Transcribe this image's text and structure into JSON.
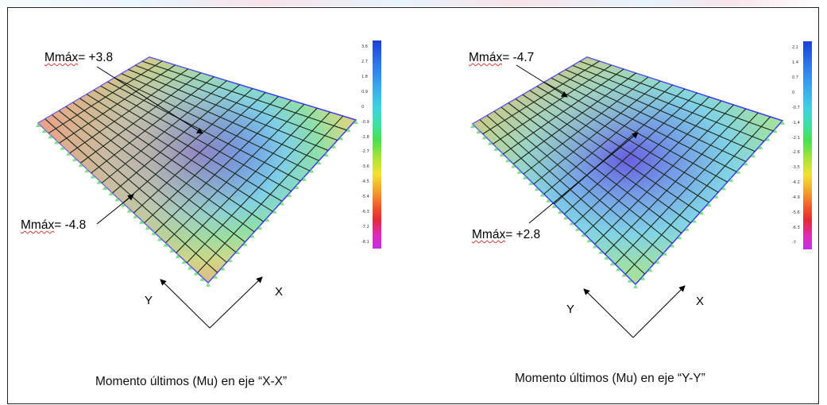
{
  "panels": [
    {
      "label_top": {
        "prefix": "Mmáx",
        "value": "= +3.8"
      },
      "label_bottom": {
        "prefix": "Mmáx",
        "value": "= -4.8"
      },
      "axis_y": "Y",
      "axis_x": "X",
      "caption": "Momento últimos (Mu) en eje “X-X”",
      "colorbar_ticks": [
        "3.6",
        "2.7",
        "1.8",
        "0.9",
        "0",
        "-0.9",
        "-1.8",
        "-2.7",
        "-3.6",
        "-4.5",
        "-5.4",
        "-6.3",
        "-7.2",
        "-8.1"
      ]
    },
    {
      "label_top": {
        "prefix": "Mmáx",
        "value": "= -4.7"
      },
      "label_bottom": {
        "prefix": "Mmáx",
        "value": "= +2.8"
      },
      "axis_y": "Y",
      "axis_x": "X",
      "caption": "Momento últimos (Mu) en eje “Y-Y”",
      "colorbar_ticks": [
        "2.1",
        "1.4",
        "0.7",
        "0",
        "-0.7",
        "-1.4",
        "-2.1",
        "-2.8",
        "-3.5",
        "-4.2",
        "-4.9",
        "-5.6",
        "-6.3",
        "-7"
      ]
    }
  ]
}
